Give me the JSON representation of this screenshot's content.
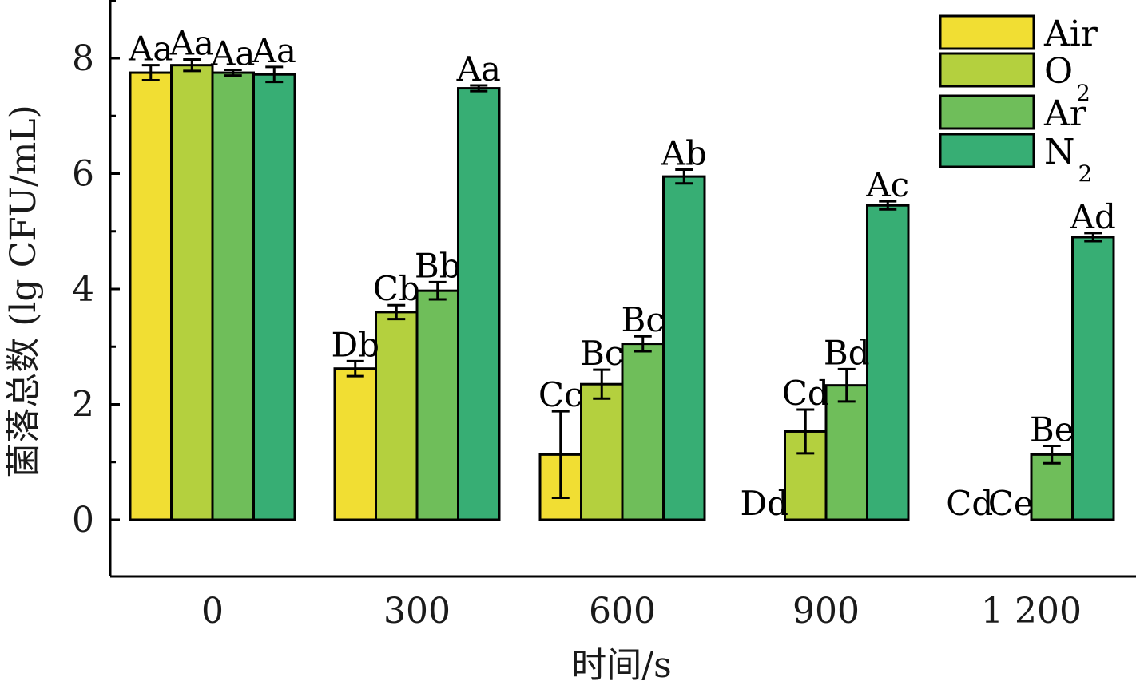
{
  "chart_data": {
    "type": "bar",
    "xlabel": "时间/s",
    "ylabel": "菌落总数 (lg CFU/mL)",
    "categories": [
      "0",
      "300",
      "600",
      "900",
      "1 200"
    ],
    "ylim": [
      -1,
      9
    ],
    "yticks": [
      "0",
      "2",
      "4",
      "6",
      "8"
    ],
    "legend_position": "top-right",
    "series": [
      {
        "name": "Air",
        "name_main": "Air",
        "name_sub": "",
        "color": "#f1de33",
        "values": [
          7.75,
          2.62,
          1.13,
          0.0,
          0.0
        ],
        "errors": [
          0.13,
          0.13,
          0.75,
          0.0,
          0.0
        ],
        "labels": [
          "Aa",
          "Db",
          "Cc",
          "Dd",
          "Cd"
        ]
      },
      {
        "name": "O2",
        "name_main": "O",
        "name_sub": "2",
        "color": "#b4d03e",
        "values": [
          7.88,
          3.6,
          2.35,
          1.53,
          0.0
        ],
        "errors": [
          0.1,
          0.12,
          0.25,
          0.38,
          0.0
        ],
        "labels": [
          "Aa",
          "Cb",
          "Bc",
          "Cd",
          "Ce"
        ]
      },
      {
        "name": "Ar",
        "name_main": "Ar",
        "name_sub": "",
        "color": "#6fbe5a",
        "values": [
          7.75,
          3.97,
          3.05,
          2.33,
          1.13
        ],
        "errors": [
          0.05,
          0.15,
          0.13,
          0.28,
          0.15
        ],
        "labels": [
          "Aa",
          "Bb",
          "Bc",
          "Bd",
          "Be"
        ]
      },
      {
        "name": "N2",
        "name_main": "N",
        "name_sub": "2",
        "color": "#37ae74",
        "values": [
          7.72,
          7.48,
          5.95,
          5.45,
          4.9
        ],
        "errors": [
          0.13,
          0.05,
          0.12,
          0.07,
          0.07
        ],
        "labels": [
          "Aa",
          "Aa",
          "Ab",
          "Ac",
          "Ad"
        ]
      }
    ]
  }
}
